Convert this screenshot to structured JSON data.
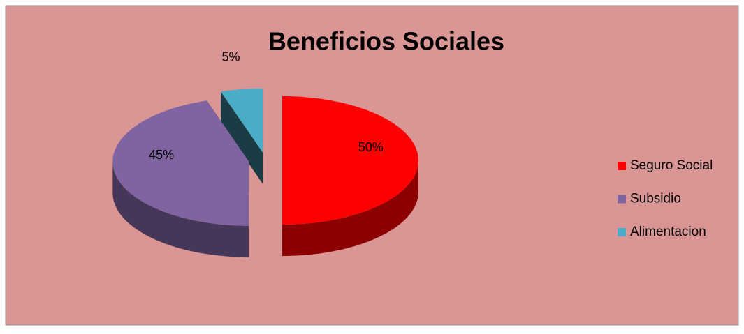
{
  "chart_data": {
    "type": "pie",
    "title": "Beneficios Sociales",
    "categories": [
      "Seguro Social",
      "Subsidio",
      "Alimentacion"
    ],
    "values": [
      50,
      45,
      5
    ],
    "value_labels": [
      "50%",
      "45%",
      "5%"
    ],
    "colors": [
      "#ff0000",
      "#8064a2",
      "#4bacc6"
    ],
    "legend": "right"
  }
}
